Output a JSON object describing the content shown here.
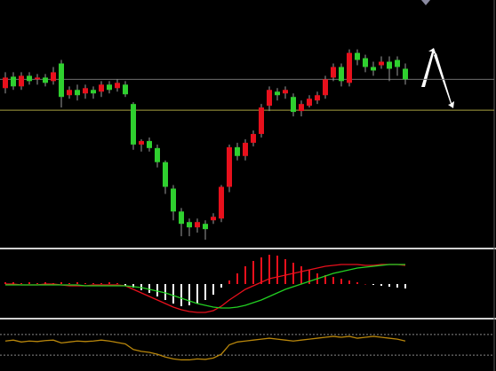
{
  "chart_data": [
    {
      "type": "candlestick",
      "up_color": "#e8101c",
      "down_color": "#2fd02f",
      "wick_color": "#9a9a9a",
      "ylim": [
        0,
        280
      ],
      "open": [
        182,
        195,
        184,
        196,
        192,
        194,
        190,
        210,
        174,
        180,
        176,
        180,
        178,
        186,
        182,
        186,
        164,
        118,
        122,
        114,
        98,
        68,
        42,
        30,
        24,
        28,
        32,
        34,
        70,
        115,
        105,
        120,
        130,
        162,
        178,
        176,
        172,
        156,
        162,
        168,
        174,
        194,
        206,
        188,
        222,
        216,
        206,
        208,
        212,
        214,
        204
      ],
      "close": [
        194,
        184,
        196,
        190,
        194,
        188,
        200,
        172,
        180,
        174,
        182,
        176,
        186,
        180,
        188,
        175,
        118,
        122,
        114,
        98,
        70,
        42,
        28,
        24,
        30,
        22,
        36,
        70,
        115,
        105,
        120,
        130,
        160,
        180,
        174,
        180,
        155,
        164,
        170,
        174,
        192,
        206,
        190,
        222,
        214,
        206,
        202,
        212,
        204,
        206,
        192
      ],
      "high": [
        200,
        200,
        200,
        200,
        198,
        198,
        206,
        214,
        184,
        186,
        186,
        184,
        190,
        190,
        192,
        190,
        166,
        124,
        126,
        118,
        100,
        72,
        46,
        34,
        34,
        32,
        40,
        72,
        118,
        120,
        124,
        134,
        164,
        184,
        182,
        184,
        176,
        168,
        174,
        178,
        196,
        210,
        210,
        226,
        226,
        220,
        212,
        218,
        218,
        218,
        210
      ],
      "low": [
        176,
        180,
        180,
        186,
        186,
        184,
        186,
        160,
        170,
        168,
        170,
        170,
        172,
        176,
        178,
        172,
        112,
        110,
        110,
        92,
        62,
        32,
        14,
        14,
        18,
        10,
        28,
        30,
        64,
        100,
        100,
        116,
        126,
        156,
        168,
        170,
        150,
        150,
        160,
        164,
        170,
        190,
        184,
        184,
        208,
        200,
        196,
        204,
        190,
        196,
        186
      ],
      "hlines": [
        {
          "value": 192,
          "color": "#6e6e6e"
        },
        {
          "value": 157,
          "color": "#a8a040"
        }
      ]
    },
    {
      "type": "macd",
      "up_color": "#e8101c",
      "down_color": "#ffffff",
      "ylim": [
        -37,
        37
      ],
      "histogram": [
        2,
        2,
        1,
        2,
        1,
        2,
        1,
        2,
        1,
        2,
        1,
        1,
        1,
        2,
        1,
        -2,
        -4,
        -7,
        -10,
        -14,
        -18,
        -22,
        -25,
        -24,
        -22,
        -18,
        -12,
        -4,
        4,
        12,
        20,
        26,
        30,
        33,
        32,
        28,
        24,
        20,
        16,
        12,
        10,
        8,
        6,
        4,
        2,
        0,
        -1,
        -2,
        -3,
        -4,
        -5
      ],
      "series": [
        {
          "color": "#e8101c",
          "values": [
            0,
            0,
            -1,
            -1,
            -1,
            0,
            0,
            -1,
            -2,
            -2,
            -2,
            -1,
            -1,
            -1,
            -1,
            -2,
            -6,
            -10,
            -14,
            -18,
            -22,
            -26,
            -29,
            -31,
            -32,
            -32,
            -30,
            -25,
            -18,
            -12,
            -6,
            -2,
            2,
            6,
            8,
            10,
            12,
            14,
            16,
            18,
            20,
            21,
            22,
            22,
            22,
            21,
            21,
            22,
            22,
            22,
            21
          ]
        },
        {
          "color": "#22d022",
          "values": [
            -1,
            -1,
            -1,
            -1,
            -1,
            -1,
            -1,
            -1,
            -1,
            -1,
            -2,
            -2,
            -2,
            -2,
            -2,
            -2,
            -3,
            -4,
            -6,
            -8,
            -10,
            -13,
            -16,
            -19,
            -22,
            -24,
            -26,
            -27,
            -27,
            -26,
            -24,
            -21,
            -18,
            -14,
            -10,
            -6,
            -3,
            0,
            3,
            6,
            9,
            12,
            14,
            16,
            18,
            19,
            20,
            21,
            22,
            22,
            22
          ]
        }
      ]
    },
    {
      "type": "line",
      "color": "#b8860b",
      "ylim": [
        0,
        100
      ],
      "values": [
        58,
        60,
        56,
        58,
        57,
        59,
        60,
        54,
        56,
        58,
        57,
        58,
        60,
        58,
        55,
        52,
        40,
        36,
        34,
        30,
        24,
        20,
        18,
        18,
        20,
        19,
        22,
        30,
        50,
        56,
        58,
        60,
        62,
        64,
        62,
        60,
        58,
        60,
        62,
        64,
        66,
        68,
        66,
        68,
        64,
        66,
        68,
        66,
        64,
        62,
        58
      ],
      "hlines": [
        {
          "value": 72,
          "color": "#888888"
        },
        {
          "value": 28,
          "color": "#888888"
        }
      ]
    }
  ]
}
